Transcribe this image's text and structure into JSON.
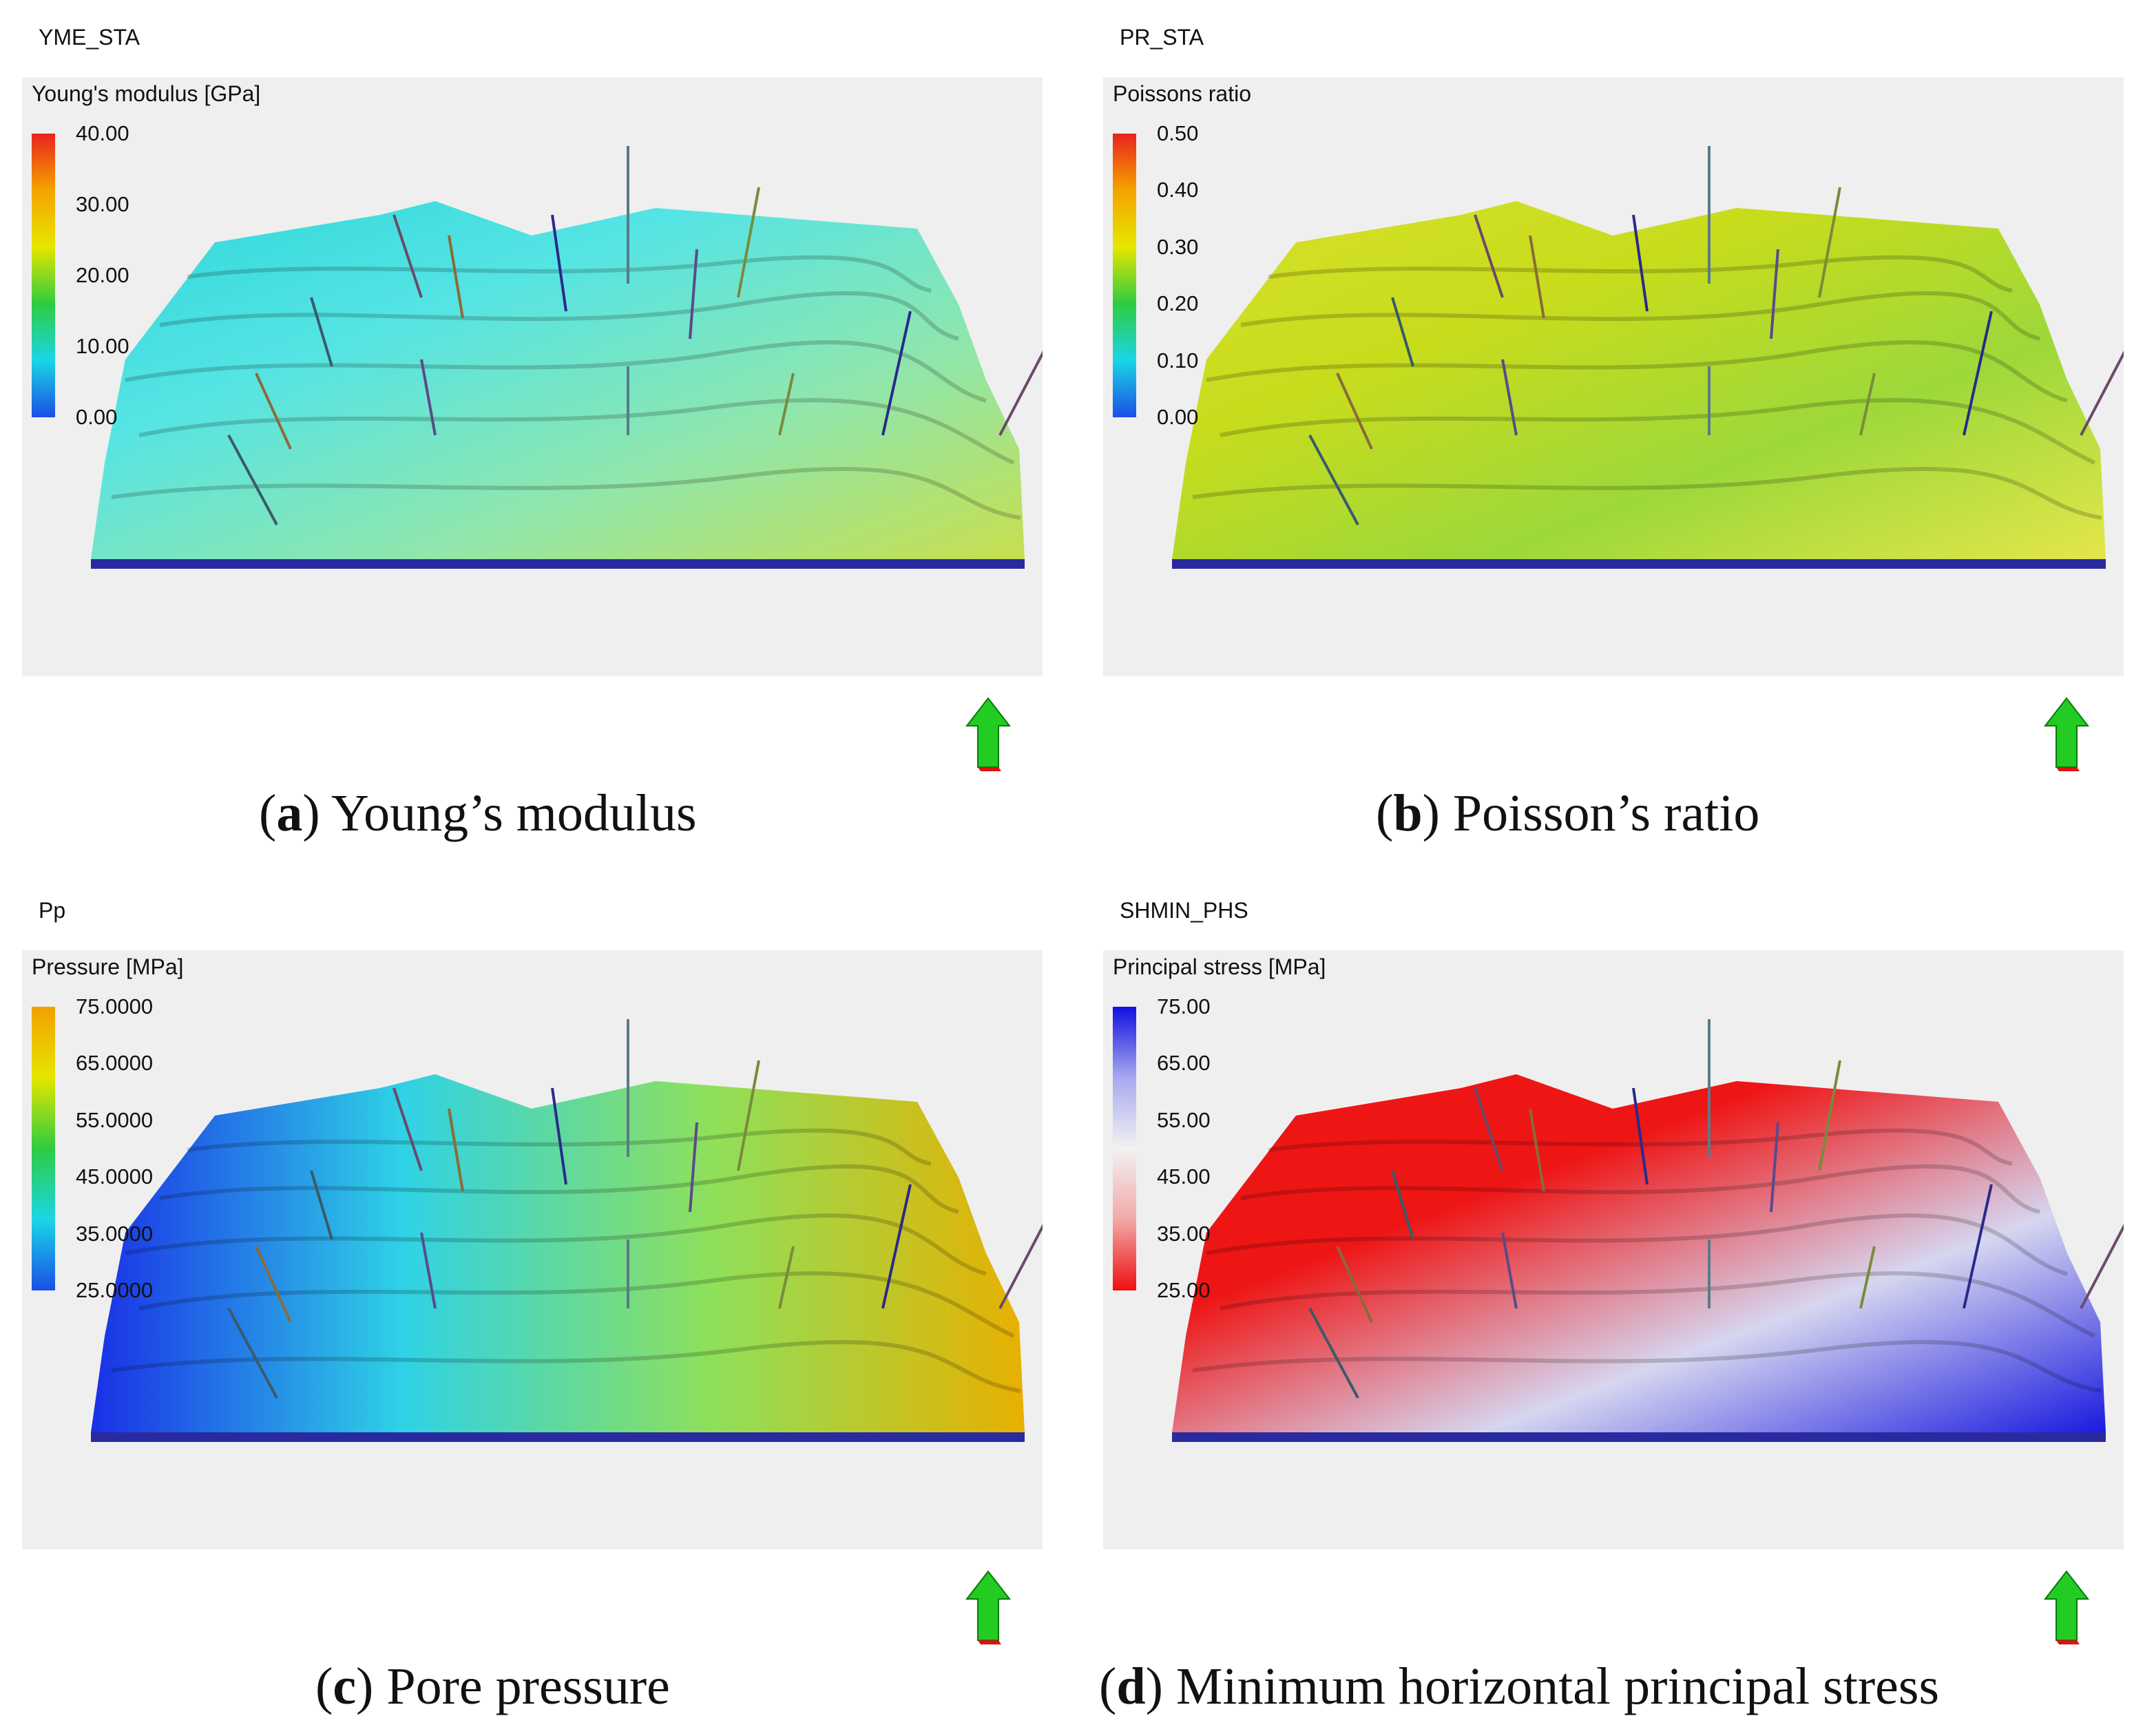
{
  "panels": [
    {
      "id": "a",
      "property": "YME_STA",
      "legend_title": "Young's modulus [GPa]",
      "legend_ticks": [
        "40.00",
        "30.00",
        "20.00",
        "10.00",
        "0.00"
      ],
      "legend_colors": [
        "#e8231c",
        "#f5a300",
        "#e6e600",
        "#2ecc40",
        "#1ad6e6",
        "#1a4fe6"
      ],
      "caption_letter": "a",
      "caption_text": "Young’s modulus",
      "surface_colors": [
        "#2fd7d9",
        "#55e4e4",
        "#8fe6ad",
        "#c7df4e"
      ]
    },
    {
      "id": "b",
      "property": "PR_STA",
      "legend_title": "Poissons ratio",
      "legend_ticks": [
        "0.50",
        "0.40",
        "0.30",
        "0.20",
        "0.10",
        "0.00"
      ],
      "legend_colors": [
        "#e8231c",
        "#f5a300",
        "#e6e600",
        "#2ecc40",
        "#1ad6e6",
        "#1a4fe6"
      ],
      "caption_letter": "b",
      "caption_text": "Poisson’s ratio",
      "surface_colors": [
        "#d7e02b",
        "#c8dc1c",
        "#9dd83a",
        "#e3e64a"
      ]
    },
    {
      "id": "c",
      "property": "Pp",
      "legend_title": "Pressure [MPa]",
      "legend_ticks": [
        "75.0000",
        "65.0000",
        "55.0000",
        "45.0000",
        "35.0000",
        "25.0000"
      ],
      "legend_colors": [
        "#f2a000",
        "#e6e600",
        "#2ecc40",
        "#1ad6e6",
        "#1a4fe6"
      ],
      "caption_letter": "c",
      "caption_text": "Pore pressure",
      "surface_colors": [
        "#1a2fe6",
        "#2fd2e6",
        "#8fe05a",
        "#e8b000"
      ]
    },
    {
      "id": "d",
      "property": "SHMIN_PHS",
      "legend_title": "Principal stress [MPa]",
      "legend_ticks": [
        "75.00",
        "65.00",
        "55.00",
        "45.00",
        "35.00",
        "25.00"
      ],
      "legend_colors": [
        "#1010e0",
        "#a8a8f0",
        "#f2f2f2",
        "#f2a8a8",
        "#ee1010"
      ],
      "caption_letter": "d",
      "caption_text": "Minimum horizontal principal stress",
      "surface_colors": [
        "#ee1515",
        "#ee1515",
        "#d6d6f0",
        "#1a1ae0"
      ]
    }
  ]
}
